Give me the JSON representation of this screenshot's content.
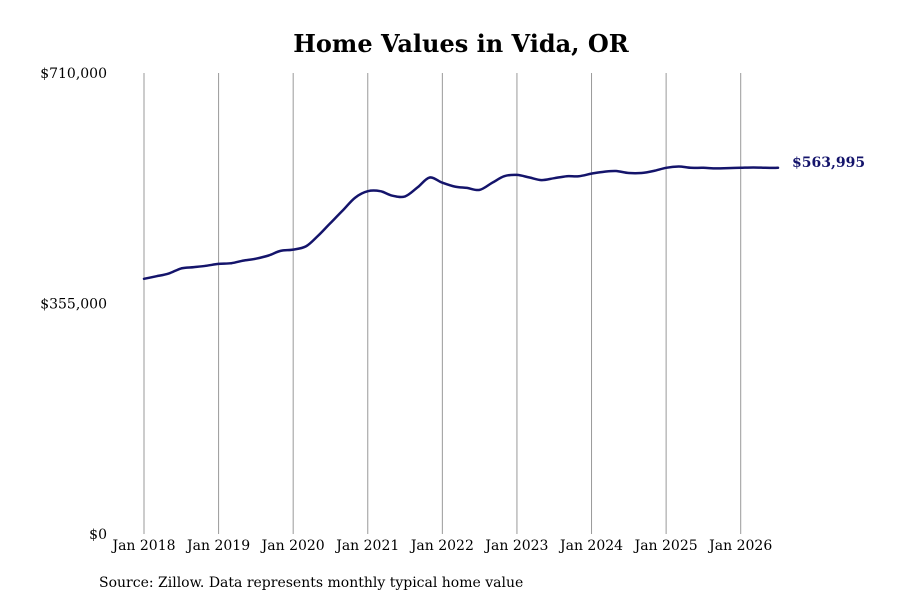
{
  "chart_data": {
    "type": "line",
    "title": "Home Values in Vida, OR",
    "xlabel": "",
    "ylabel": "",
    "ylim": [
      0,
      710000
    ],
    "y_ticks": [
      "$0",
      "$355,000",
      "$710,000"
    ],
    "y_tick_values": [
      0,
      355000,
      710000
    ],
    "x_ticks": [
      "Jan 2018",
      "Jan 2019",
      "Jan 2020",
      "Jan 2021",
      "Jan 2022",
      "Jan 2023",
      "Jan 2024",
      "Jan 2025",
      "Jan 2026"
    ],
    "x_tick_values": [
      2018.0,
      2019.0,
      2020.0,
      2021.0,
      2022.0,
      2023.0,
      2024.0,
      2025.0,
      2026.0
    ],
    "xlim": [
      2018.0,
      2026.5
    ],
    "grid": "vertical",
    "line_color": "#14146b",
    "end_label": "$563,995",
    "series": [
      {
        "name": "",
        "x": [
          2018.0,
          2018.17,
          2018.33,
          2018.5,
          2018.67,
          2018.83,
          2019.0,
          2019.17,
          2019.33,
          2019.5,
          2019.67,
          2019.83,
          2020.0,
          2020.17,
          2020.33,
          2020.5,
          2020.67,
          2020.83,
          2021.0,
          2021.17,
          2021.33,
          2021.5,
          2021.67,
          2021.83,
          2022.0,
          2022.17,
          2022.33,
          2022.5,
          2022.67,
          2022.83,
          2023.0,
          2023.17,
          2023.33,
          2023.5,
          2023.67,
          2023.83,
          2024.0,
          2024.17,
          2024.33,
          2024.5,
          2024.67,
          2024.83,
          2025.0,
          2025.17,
          2025.33,
          2025.5,
          2025.67,
          2025.83,
          2026.0,
          2026.17,
          2026.33,
          2026.5
        ],
        "values": [
          393000,
          397000,
          401000,
          409000,
          411000,
          413000,
          416000,
          417000,
          421000,
          424000,
          429000,
          436000,
          438000,
          443000,
          459000,
          479000,
          499000,
          518000,
          528000,
          528000,
          521000,
          520000,
          534000,
          549000,
          541000,
          535000,
          533000,
          530000,
          541000,
          551000,
          553000,
          549000,
          545000,
          548000,
          551000,
          551000,
          555000,
          558000,
          559000,
          556000,
          556000,
          559000,
          564000,
          566000,
          564000,
          563995,
          563000,
          563500,
          564000,
          564500,
          564000,
          563995
        ]
      }
    ]
  },
  "source_note": "Source: Zillow. Data represents monthly typical home value"
}
